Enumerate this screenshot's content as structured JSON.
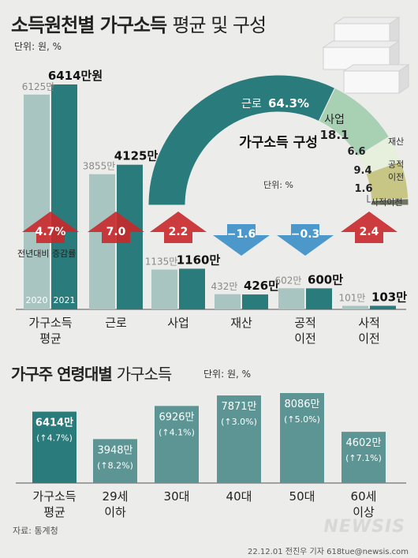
{
  "title": "소득원천별 가구소득",
  "title_sub": "평균 및 구성",
  "unit": "단위: 원, %",
  "colors": {
    "bar2020": "#a9c5c1",
    "bar2021": "#2a7b7b",
    "up": "#c9282a",
    "down": "#3c8fc7",
    "arc_main": "#2a7b7b",
    "arc_biz": "#a8d1b4",
    "arc_asset": "#e6f0dc",
    "arc_public": "#c8c684",
    "arc_private": "#6e7560"
  },
  "chart_data": [
    {
      "type": "bar",
      "categories": [
        "가구소득\n평균",
        "근로",
        "사업",
        "재산",
        "공적\n이전",
        "사적\n이전"
      ],
      "series": [
        {
          "name": "2020",
          "values": [
            6125,
            3855,
            1135,
            432,
            602,
            101
          ],
          "labels": [
            "6125만",
            "3855만",
            "1135만",
            "432만",
            "602만",
            "101만"
          ]
        },
        {
          "name": "2021",
          "values": [
            6414,
            4125,
            1160,
            426,
            600,
            103
          ],
          "labels": [
            "6414만원",
            "4125만",
            "1160만",
            "426만",
            "600만",
            "103만"
          ]
        }
      ],
      "change_pct": [
        4.7,
        7.0,
        2.2,
        -1.6,
        -0.3,
        2.4
      ],
      "change_labels": [
        "4.7%",
        "7.0",
        "2.2",
        "−1.6",
        "−0.3",
        "2.4"
      ],
      "change_note": "전년대비 증감률"
    },
    {
      "type": "pie",
      "title": "가구소득 구성",
      "unit": "단위: %",
      "labels": [
        "근로",
        "사업",
        "재산",
        "공적 이전",
        "사적이전"
      ],
      "values": [
        64.3,
        18.1,
        6.6,
        9.4,
        1.6
      ],
      "value_labels": [
        "64.3%",
        "18.1",
        "6.6",
        "9.4",
        "1.6"
      ],
      "outer_labels": [
        "재산",
        "공적\n이전",
        "사적이전"
      ]
    },
    {
      "type": "bar",
      "title": "가구주 연령대별",
      "title_sub": "가구소득",
      "unit": "단위: 원, %",
      "categories": [
        "가구소득\n평균",
        "29세\n이하",
        "30대",
        "40대",
        "50대",
        "60세\n이상"
      ],
      "values": [
        6414,
        3948,
        6926,
        7871,
        8086,
        4602
      ],
      "value_labels": [
        "6414만",
        "3948만",
        "6926만",
        "7871만",
        "8086만",
        "4602만"
      ],
      "change_labels": [
        "4.7%",
        "8.2%",
        "4.1%",
        "3.0%",
        "5.0%",
        "7.1%"
      ]
    }
  ],
  "source": "자료: 통계청",
  "credit": "22.12.01 전진우 기자 618tue@newsis.com",
  "logo": "NEWSIS"
}
